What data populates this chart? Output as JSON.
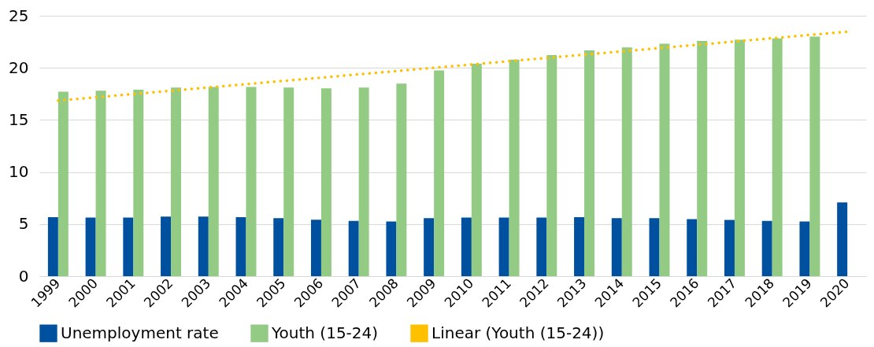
{
  "chart_data": {
    "type": "bar",
    "categories": [
      "1999",
      "2000",
      "2001",
      "2002",
      "2003",
      "2004",
      "2005",
      "2006",
      "2007",
      "2008",
      "2009",
      "2010",
      "2011",
      "2012",
      "2013",
      "2014",
      "2015",
      "2016",
      "2017",
      "2018",
      "2019",
      "2020"
    ],
    "series": [
      {
        "name": "Unemployment rate",
        "color": "#0050a0",
        "values": [
          5.66,
          5.63,
          5.63,
          5.72,
          5.72,
          5.66,
          5.57,
          5.42,
          5.31,
          5.25,
          5.57,
          5.63,
          5.63,
          5.63,
          5.66,
          5.57,
          5.57,
          5.48,
          5.4,
          5.31,
          5.25,
          7.08
        ]
      },
      {
        "name": "Youth (15-24)",
        "color": "#93cb85",
        "values": [
          17.72,
          17.81,
          17.9,
          18.1,
          18.16,
          18.16,
          18.1,
          18.04,
          18.1,
          18.48,
          19.75,
          20.4,
          20.78,
          21.23,
          21.67,
          21.96,
          22.32,
          22.58,
          22.7,
          22.82,
          23.0,
          null
        ]
      },
      {
        "name": "Linear (Youth (15-24))",
        "type": "line",
        "line_style": "dotted",
        "color": "#ffc000",
        "values": [
          16.86,
          17.17,
          17.49,
          17.8,
          18.12,
          18.43,
          18.75,
          19.06,
          19.38,
          19.69,
          20.01,
          20.32,
          20.64,
          20.95,
          21.27,
          21.58,
          21.9,
          22.21,
          22.53,
          22.84,
          23.16,
          23.47
        ]
      }
    ],
    "ylim": [
      0,
      25
    ],
    "yticks": [
      0,
      5,
      10,
      15,
      20,
      25
    ],
    "grid": "y",
    "legend": "bottom"
  }
}
